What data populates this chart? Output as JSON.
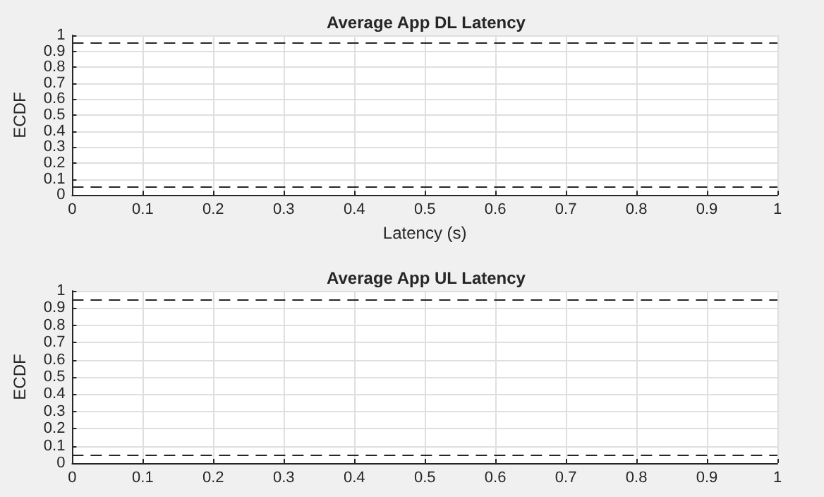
{
  "chart_data": [
    {
      "type": "line",
      "title": "Average App DL Latency",
      "xlabel": "Latency (s)",
      "ylabel": "ECDF",
      "xlim": [
        0,
        1
      ],
      "xticks": [
        0,
        0.1,
        0.2,
        0.3,
        0.4,
        0.5,
        0.6,
        0.7,
        0.8,
        0.9,
        1
      ],
      "ylim": [
        0,
        1
      ],
      "yticks": [
        0,
        0.1,
        0.2,
        0.3,
        0.4,
        0.5,
        0.6,
        0.7,
        0.8,
        0.9,
        1
      ],
      "grid": true,
      "ref_lines": [
        {
          "axis": "y",
          "value": 0.05,
          "color": "#262626",
          "line_style": "dashed"
        },
        {
          "axis": "y",
          "value": 0.95,
          "color": "#262626",
          "line_style": "dashed"
        }
      ]
    },
    {
      "type": "line",
      "title": "Average App UL Latency",
      "ylabel": "ECDF",
      "xlim": [
        0,
        1
      ],
      "xticks": [
        0,
        0.1,
        0.2,
        0.3,
        0.4,
        0.5,
        0.6,
        0.7,
        0.8,
        0.9,
        1
      ],
      "ylim": [
        0,
        1
      ],
      "yticks": [
        0,
        0.1,
        0.2,
        0.3,
        0.4,
        0.5,
        0.6,
        0.7,
        0.8,
        0.9,
        1
      ],
      "grid": true,
      "ref_lines": [
        {
          "axis": "y",
          "value": 0.05,
          "color": "#262626",
          "line_style": "dashed"
        },
        {
          "axis": "y",
          "value": 0.95,
          "color": "#262626",
          "line_style": "dashed"
        }
      ]
    }
  ]
}
